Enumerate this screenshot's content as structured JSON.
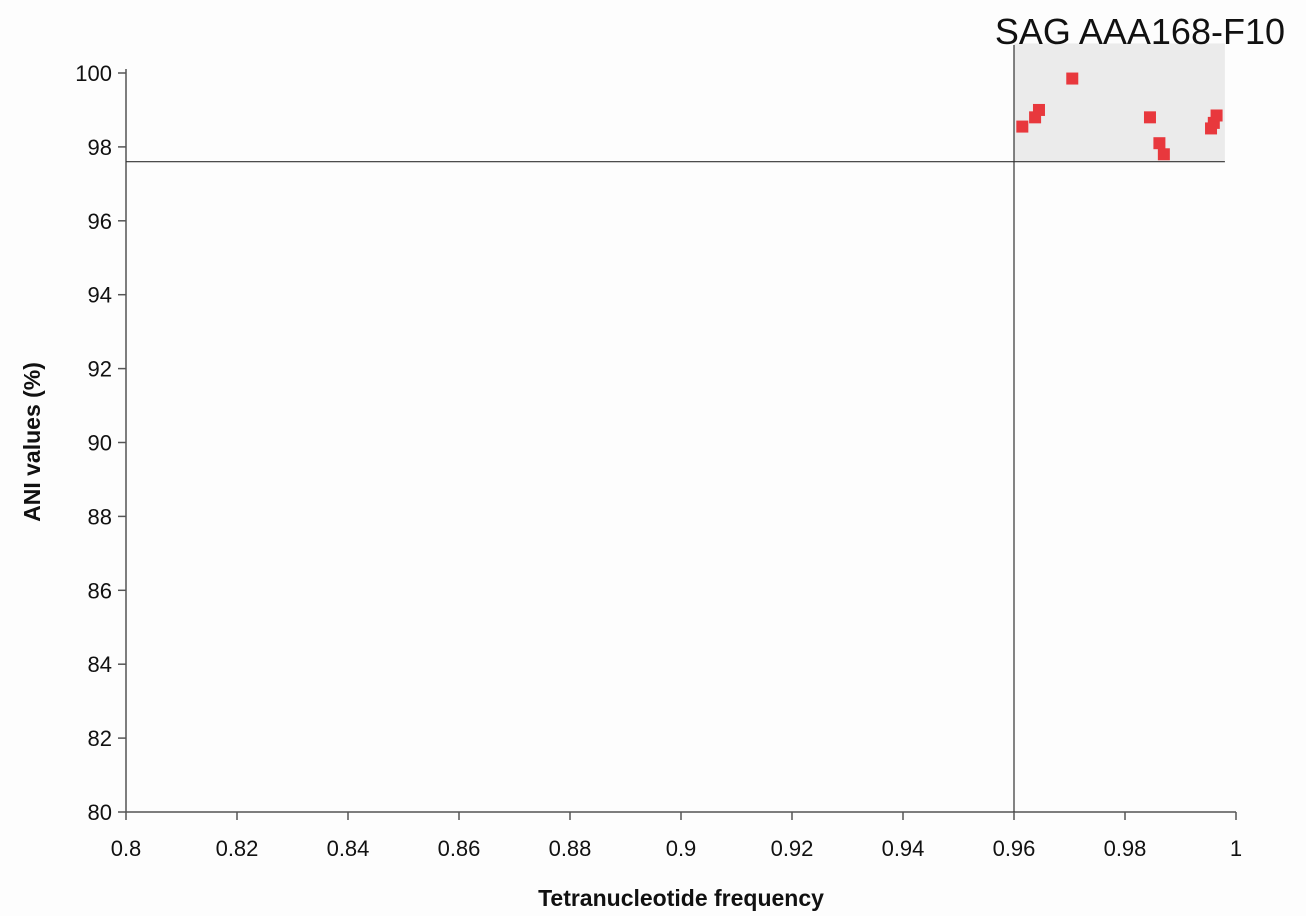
{
  "chart_data": {
    "type": "scatter",
    "title": "SAG AAA168-F10",
    "xlabel": "Tetranucleotide frequency",
    "ylabel": "ANI values (%)",
    "xlim": [
      0.8,
      1.0
    ],
    "ylim": [
      80,
      100
    ],
    "x_ticks": [
      "0.8",
      "0.82",
      "0.84",
      "0.86",
      "0.88",
      "0.9",
      "0.92",
      "0.94",
      "0.96",
      "0.98",
      "1"
    ],
    "y_ticks": [
      "80",
      "82",
      "84",
      "86",
      "88",
      "90",
      "92",
      "94",
      "96",
      "98",
      "100"
    ],
    "grid": false,
    "legend": "none",
    "threshold_x": 0.96,
    "threshold_y": 97.6,
    "highlight_region": {
      "x": [
        0.96,
        0.998
      ],
      "y": [
        97.6,
        100.8
      ],
      "color": "#ebebeb"
    },
    "series": [
      {
        "color": "#e8383d",
        "points": [
          {
            "x": 0.9615,
            "y": 98.55
          },
          {
            "x": 0.9638,
            "y": 98.8
          },
          {
            "x": 0.9645,
            "y": 99.0
          },
          {
            "x": 0.9705,
            "y": 99.85
          },
          {
            "x": 0.9845,
            "y": 98.8
          },
          {
            "x": 0.9862,
            "y": 98.1
          },
          {
            "x": 0.987,
            "y": 97.8
          },
          {
            "x": 0.9955,
            "y": 98.5
          },
          {
            "x": 0.996,
            "y": 98.65
          },
          {
            "x": 0.9965,
            "y": 98.85
          }
        ]
      }
    ]
  }
}
